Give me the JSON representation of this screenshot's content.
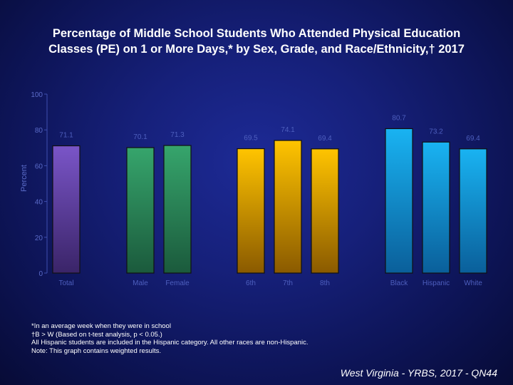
{
  "title": {
    "line1": "Percentage of Middle School Students Who Attended Physical Education",
    "line2": "Classes (PE) on 1 or More Days,* by Sex, Grade, and Race/Ethnicity,† 2017"
  },
  "chart_data": {
    "type": "bar",
    "ylabel": "Percent",
    "ylim": [
      0,
      100
    ],
    "yticks": [
      "0",
      "20",
      "40",
      "60",
      "80",
      "100"
    ],
    "grid": false,
    "categories": [
      "Total",
      "Male",
      "Female",
      "6th",
      "7th",
      "8th",
      "Black",
      "Hispanic",
      "White"
    ],
    "values": [
      71.1,
      70.1,
      71.3,
      69.5,
      74.1,
      69.4,
      80.7,
      73.2,
      69.4
    ],
    "value_labels": [
      "71.1",
      "70.1",
      "71.3",
      "69.5",
      "74.1",
      "69.4",
      "80.7",
      "73.2",
      "69.4"
    ],
    "colors": [
      "#6a4ab8",
      "#2f9a62",
      "#2f9a62",
      "#f4b400",
      "#f4b400",
      "#f4b400",
      "#13a7e6",
      "#13a7e6",
      "#13a7e6"
    ]
  },
  "footnotes": [
    "*In an average week when they were in school",
    "†B > W (Based on t-test analysis, p < 0.05.)",
    "All Hispanic students are included in the Hispanic category.  All other races are non-Hispanic.",
    "Note: This graph contains weighted results."
  ],
  "source": "West Virginia - YRBS, 2017 - QN44"
}
